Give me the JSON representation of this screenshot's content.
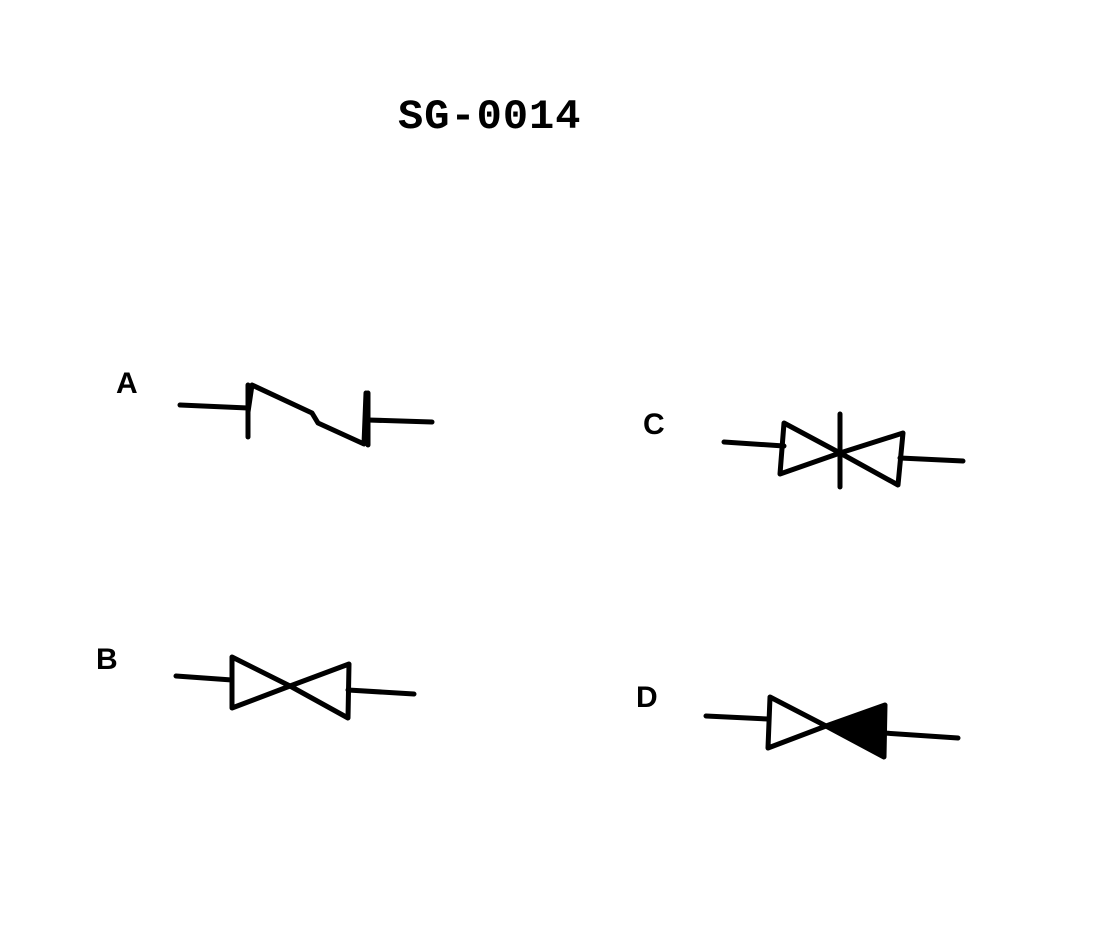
{
  "figure": {
    "title": "SG-0014",
    "ink_color": "#000000",
    "background_color": "#ffffff"
  },
  "symbols": [
    {
      "id": "A",
      "label": "A"
    },
    {
      "id": "B",
      "label": "B"
    },
    {
      "id": "C",
      "label": "C"
    },
    {
      "id": "D",
      "label": "D"
    }
  ]
}
